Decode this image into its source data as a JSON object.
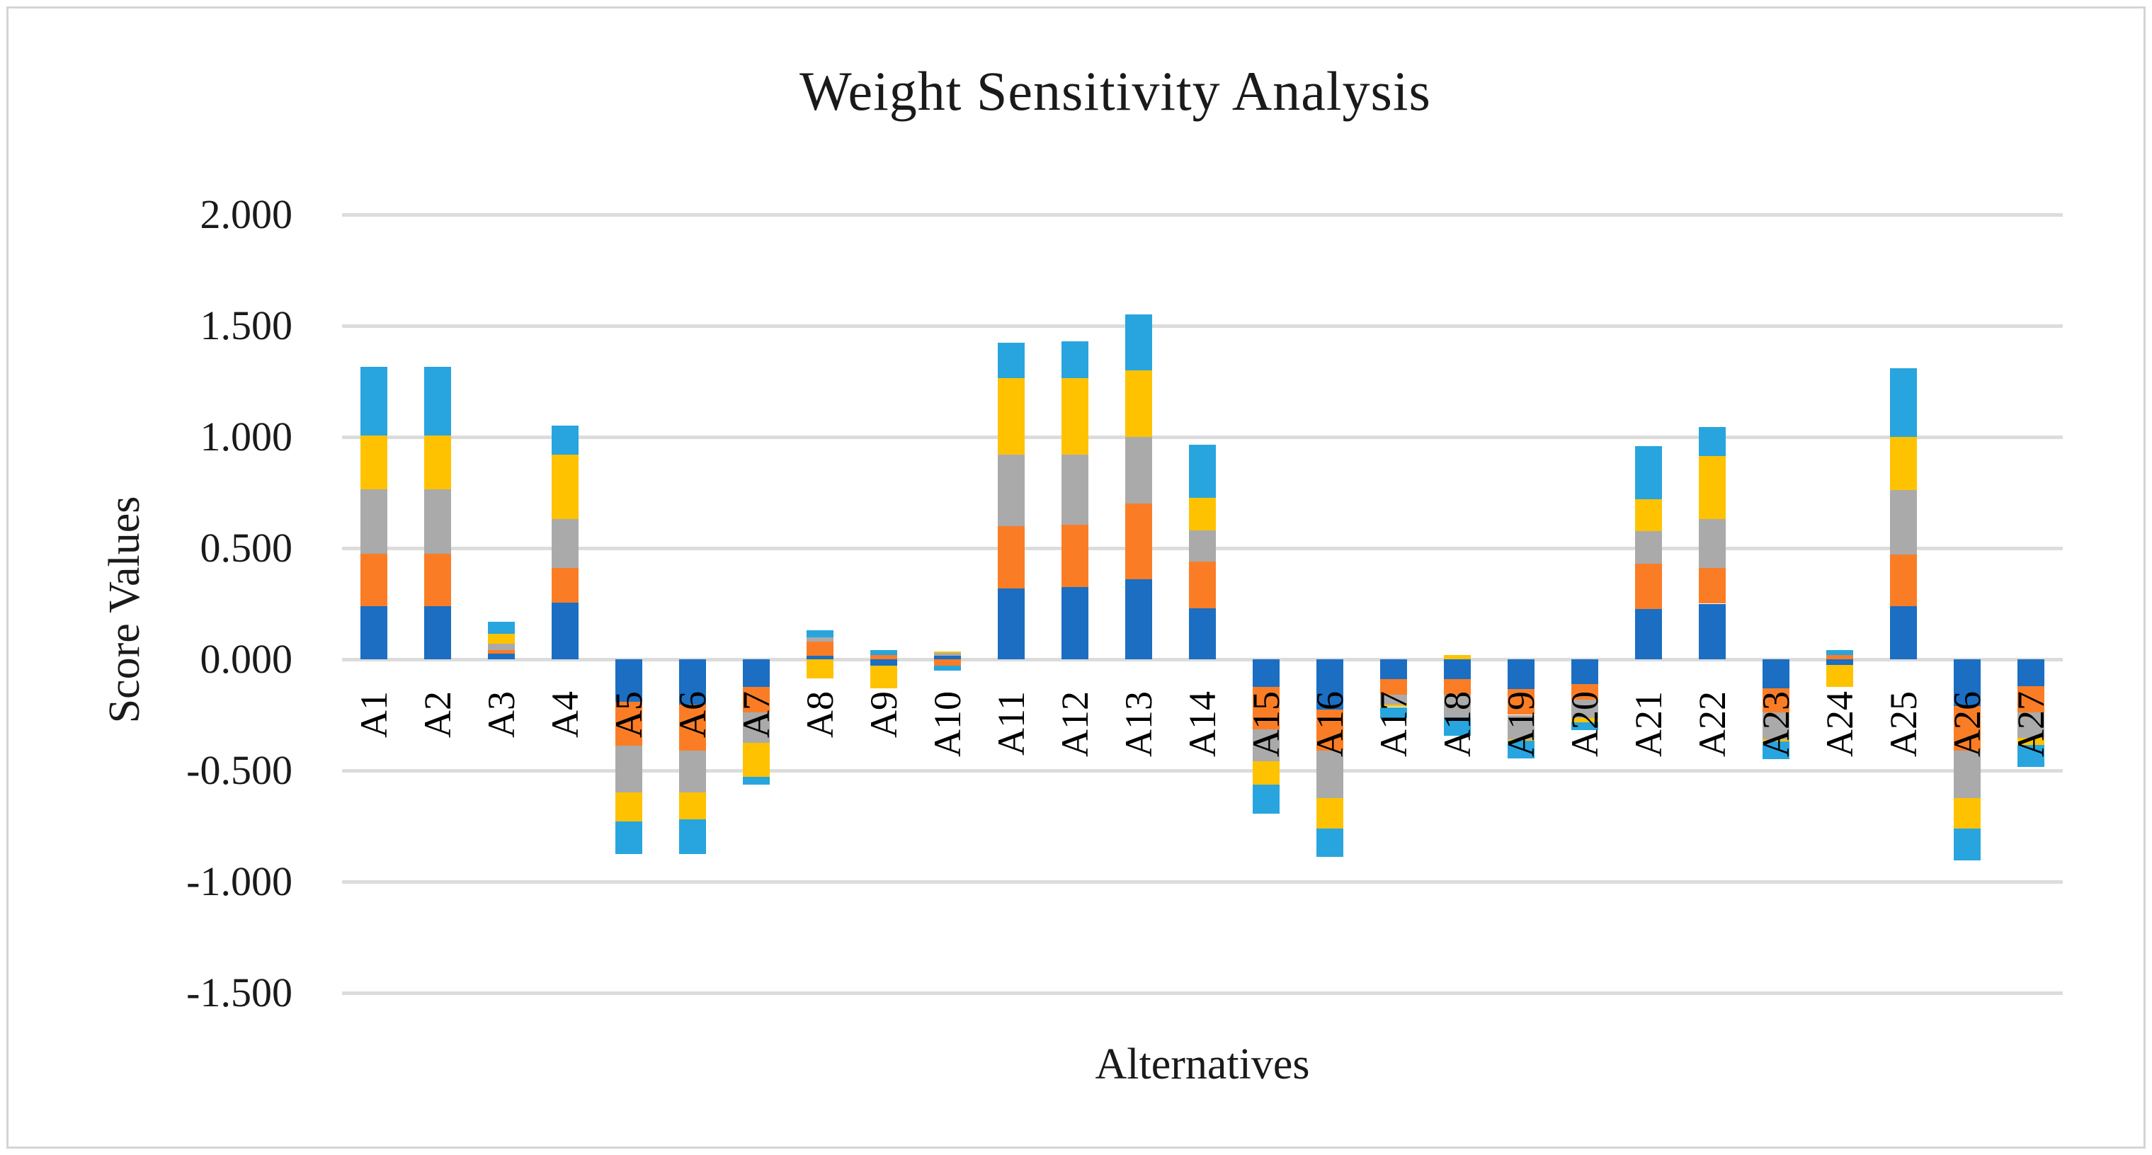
{
  "page": {
    "background": "#FFFFFF",
    "border_color": "#D4D4D4"
  },
  "chart_data": {
    "type": "bar",
    "stacked": true,
    "title": "Weight Sensitivity Analysis",
    "xlabel": "Alternatives",
    "ylabel": "Score Values",
    "legend": "none",
    "grid": "horizontal",
    "gridline_color": "#DCDCDC",
    "ylim": [
      -1.5,
      2.0
    ],
    "y_ticks": [
      "2.000",
      "1.500",
      "1.000",
      "0.500",
      "0.000",
      "-0.500",
      "-1.000",
      "-1.500"
    ],
    "categories": [
      "A1",
      "A2",
      "A3",
      "A4",
      "A5",
      "A6",
      "A7",
      "A8",
      "A9",
      "A10",
      "A11",
      "A12",
      "A13",
      "A14",
      "A15",
      "A16",
      "A17",
      "A18",
      "A19",
      "A20",
      "A21",
      "A22",
      "A23",
      "A24",
      "A25",
      "A26",
      "A27"
    ],
    "series": [
      {
        "name": "blue",
        "color": "#1B6EC2",
        "values": [
          0.24,
          0.24,
          0.025,
          0.255,
          -0.19,
          -0.205,
          -0.125,
          0.015,
          -0.03,
          0.015,
          0.32,
          0.325,
          0.36,
          0.23,
          -0.125,
          -0.225,
          -0.09,
          -0.09,
          -0.135,
          -0.11,
          0.225,
          0.25,
          -0.13,
          -0.025,
          0.24,
          -0.21,
          -0.12
        ]
      },
      {
        "name": "orange",
        "color": "#FA7D26",
        "values": [
          0.235,
          0.235,
          0.015,
          0.155,
          -0.2,
          -0.205,
          -0.115,
          0.065,
          0.02,
          -0.03,
          0.28,
          0.28,
          0.34,
          0.21,
          -0.19,
          -0.185,
          -0.07,
          -0.07,
          -0.115,
          -0.07,
          0.205,
          0.16,
          -0.11,
          0.02,
          0.23,
          -0.2,
          -0.12
        ]
      },
      {
        "name": "gray",
        "color": "#AAAAAA",
        "values": [
          0.29,
          0.29,
          0.03,
          0.22,
          -0.21,
          -0.19,
          -0.135,
          0.02,
          0.0,
          0.015,
          0.32,
          0.315,
          0.3,
          0.14,
          -0.145,
          -0.215,
          -0.045,
          -0.1,
          -0.11,
          -0.085,
          0.145,
          0.22,
          -0.12,
          0.0,
          0.29,
          -0.215,
          -0.115
        ]
      },
      {
        "name": "yellow",
        "color": "#FFC200",
        "values": [
          0.24,
          0.24,
          0.045,
          0.29,
          -0.13,
          -0.12,
          -0.155,
          -0.085,
          -0.1,
          0.005,
          0.345,
          0.345,
          0.3,
          0.145,
          -0.105,
          -0.135,
          -0.01,
          0.02,
          -0.005,
          -0.02,
          0.145,
          0.285,
          -0.01,
          -0.1,
          0.24,
          -0.135,
          -0.03
        ]
      },
      {
        "name": "light-blue",
        "color": "#28A5DE",
        "values": [
          0.31,
          0.31,
          0.055,
          0.13,
          -0.145,
          -0.155,
          -0.035,
          0.03,
          0.02,
          -0.02,
          0.16,
          0.165,
          0.25,
          0.24,
          -0.13,
          -0.13,
          -0.05,
          -0.085,
          -0.08,
          -0.035,
          0.24,
          0.13,
          -0.08,
          0.02,
          0.31,
          -0.145,
          -0.1
        ]
      }
    ]
  }
}
